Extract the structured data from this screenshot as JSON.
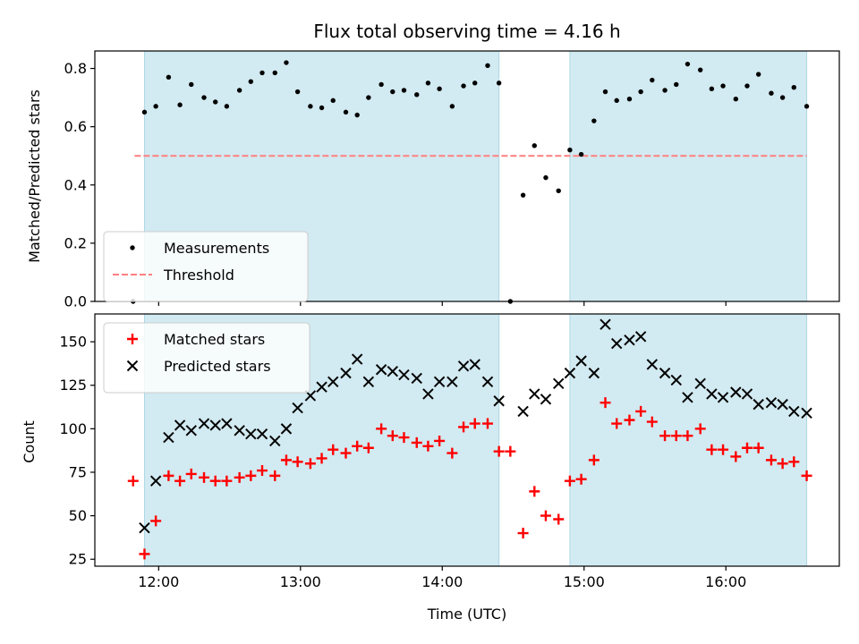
{
  "chart_data": {
    "title": "Flux total observing time = 4.16 h",
    "xlabel": "Time (UTC)",
    "x_ticks": [
      "12:00",
      "13:00",
      "14:00",
      "15:00",
      "16:00"
    ],
    "x_tick_hours": [
      12,
      13,
      14,
      15,
      16
    ],
    "xlim_hours": [
      11.55,
      16.8
    ],
    "observing_windows_hours": [
      [
        11.9,
        14.4
      ],
      [
        14.9,
        16.57
      ]
    ],
    "colors": {
      "window": "#add8e6",
      "measurements": "#000000",
      "threshold": "#ff7f7f",
      "matched": "#ff0000",
      "predicted": "#000000"
    },
    "panels": [
      {
        "type": "scatter",
        "ylabel": "Matched/Predicted stars",
        "ylim": [
          0,
          0.86
        ],
        "y_ticks": [
          "0.0",
          "0.2",
          "0.4",
          "0.6",
          "0.8"
        ],
        "y_tick_values": [
          0,
          0.2,
          0.4,
          0.6,
          0.8
        ],
        "legend_placement": "lower-left",
        "threshold": {
          "name": "Threshold",
          "value": 0.5,
          "x_range": [
            11.83,
            16.57
          ]
        },
        "series": [
          {
            "name": "Measurements",
            "marker": "dot",
            "x": [
              11.82,
              11.9,
              11.98,
              12.07,
              12.15,
              12.23,
              12.32,
              12.4,
              12.48,
              12.57,
              12.65,
              12.73,
              12.82,
              12.9,
              12.98,
              13.07,
              13.15,
              13.23,
              13.32,
              13.4,
              13.48,
              13.57,
              13.65,
              13.73,
              13.82,
              13.9,
              13.98,
              14.07,
              14.15,
              14.23,
              14.32,
              14.4,
              14.48,
              14.57,
              14.65,
              14.73,
              14.82,
              14.9,
              14.98,
              15.07,
              15.15,
              15.23,
              15.32,
              15.4,
              15.48,
              15.57,
              15.65,
              15.73,
              15.82,
              15.9,
              15.98,
              16.07,
              16.15,
              16.23,
              16.32,
              16.4,
              16.48,
              16.57
            ],
            "y": [
              0.0,
              0.65,
              0.67,
              0.77,
              0.675,
              0.745,
              0.7,
              0.685,
              0.67,
              0.725,
              0.755,
              0.785,
              0.785,
              0.82,
              0.72,
              0.67,
              0.665,
              0.69,
              0.65,
              0.64,
              0.7,
              0.745,
              0.72,
              0.725,
              0.71,
              0.75,
              0.73,
              0.67,
              0.74,
              0.75,
              0.81,
              0.75,
              0.0,
              0.365,
              0.535,
              0.425,
              0.38,
              0.52,
              0.505,
              0.62,
              0.72,
              0.69,
              0.695,
              0.72,
              0.76,
              0.725,
              0.745,
              0.815,
              0.795,
              0.73,
              0.74,
              0.695,
              0.74,
              0.78,
              0.715,
              0.7,
              0.735,
              0.67
            ]
          }
        ]
      },
      {
        "type": "scatter",
        "ylabel": "Count",
        "ylim": [
          21,
          166
        ],
        "y_ticks": [
          "25",
          "50",
          "75",
          "100",
          "125",
          "150"
        ],
        "y_tick_values": [
          25,
          50,
          75,
          100,
          125,
          150
        ],
        "legend_placement": "upper-left",
        "series": [
          {
            "name": "Matched stars",
            "marker": "plus",
            "x": [
              11.82,
              11.9,
              11.98,
              12.07,
              12.15,
              12.23,
              12.32,
              12.4,
              12.48,
              12.57,
              12.65,
              12.73,
              12.82,
              12.9,
              12.98,
              13.07,
              13.15,
              13.23,
              13.32,
              13.4,
              13.48,
              13.57,
              13.65,
              13.73,
              13.82,
              13.9,
              13.98,
              14.07,
              14.15,
              14.23,
              14.32,
              14.4,
              14.48,
              14.57,
              14.65,
              14.73,
              14.82,
              14.9,
              14.98,
              15.07,
              15.15,
              15.23,
              15.32,
              15.4,
              15.48,
              15.57,
              15.65,
              15.73,
              15.82,
              15.9,
              15.98,
              16.07,
              16.15,
              16.23,
              16.32,
              16.4,
              16.48,
              16.57
            ],
            "y": [
              70,
              28,
              47,
              73,
              70,
              74,
              72,
              70,
              70,
              72,
              73,
              76,
              73,
              82,
              81,
              80,
              83,
              88,
              86,
              90,
              89,
              100,
              96,
              95,
              92,
              90,
              93,
              86,
              101,
              103,
              103,
              87,
              87,
              40,
              64,
              50,
              48,
              70,
              71,
              82,
              115,
              103,
              105,
              110,
              104,
              96,
              96,
              96,
              100,
              88,
              88,
              84,
              89,
              89,
              82,
              80,
              81,
              73
            ]
          },
          {
            "name": "Predicted stars",
            "marker": "cross",
            "x": [
              11.9,
              11.98,
              12.07,
              12.15,
              12.23,
              12.32,
              12.4,
              12.48,
              12.57,
              12.65,
              12.73,
              12.82,
              12.9,
              12.98,
              13.07,
              13.15,
              13.23,
              13.32,
              13.4,
              13.48,
              13.57,
              13.65,
              13.73,
              13.82,
              13.9,
              13.98,
              14.07,
              14.15,
              14.23,
              14.32,
              14.4,
              14.57,
              14.65,
              14.73,
              14.82,
              14.9,
              14.98,
              15.07,
              15.15,
              15.23,
              15.32,
              15.4,
              15.48,
              15.57,
              15.65,
              15.73,
              15.82,
              15.9,
              15.98,
              16.07,
              16.15,
              16.23,
              16.32,
              16.4,
              16.48,
              16.57
            ],
            "y": [
              43,
              70,
              95,
              102,
              99,
              103,
              102,
              103,
              99,
              97,
              97,
              93,
              100,
              112,
              119,
              124,
              127,
              132,
              140,
              127,
              134,
              133,
              131,
              129,
              120,
              127,
              127,
              136,
              137,
              127,
              116,
              110,
              120,
              117,
              126,
              132,
              139,
              132,
              160,
              149,
              151,
              153,
              137,
              132,
              128,
              118,
              126,
              120,
              118,
              121,
              120,
              114,
              115,
              114,
              110,
              109
            ]
          }
        ]
      }
    ]
  }
}
